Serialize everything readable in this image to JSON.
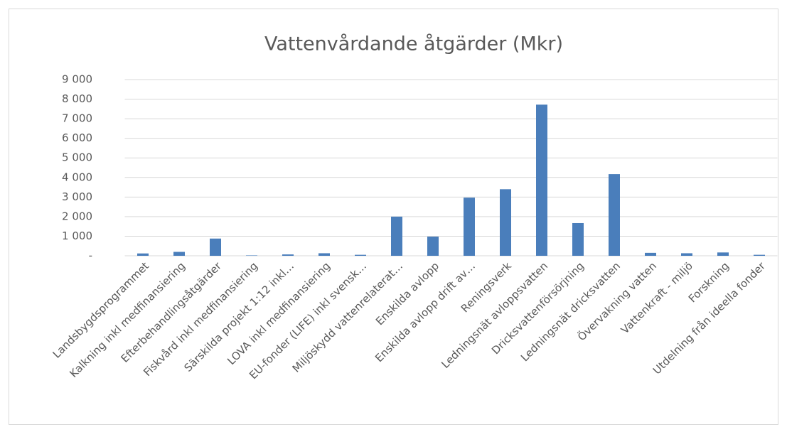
{
  "chart_data": {
    "type": "bar",
    "title": "Vattenvårdande åtgärder (Mkr)",
    "categories": [
      "Landsbygdsprogrammet",
      "Kalkning inkl medfinansiering",
      "Efterbehandlingsåtgärder",
      "Fiskvård inkl medfinansiering",
      "Särskilda projekt 1:12 inkl…",
      "LOVA inkl medfinansiering",
      "EU-fonder (LIFE) inkl svensk…",
      "Miljöskydd vattenrelaterat…",
      "Enskilda avlopp",
      "Enskilda avlopp drift av…",
      "Reningsverk",
      "Ledningsnät avloppsvatten",
      "Dricksvattenförsörjning",
      "Ledningsnät dricksvatten",
      "Övervakning vatten",
      "Vattenkraft - miljö",
      "Forskning",
      "Utdelning från ideella fonder"
    ],
    "values": [
      120,
      200,
      880,
      20,
      70,
      130,
      50,
      2000,
      980,
      2970,
      3400,
      7720,
      1670,
      4170,
      150,
      130,
      170,
      50
    ],
    "color": "#4a7ebb",
    "ylim": [
      0,
      9000
    ],
    "yticks": [
      {
        "value": 0,
        "label": "-"
      },
      {
        "value": 1000,
        "label": "1 000"
      },
      {
        "value": 2000,
        "label": "2 000"
      },
      {
        "value": 3000,
        "label": "3 000"
      },
      {
        "value": 4000,
        "label": "4 000"
      },
      {
        "value": 5000,
        "label": "5 000"
      },
      {
        "value": 6000,
        "label": "6 000"
      },
      {
        "value": 7000,
        "label": "7 000"
      },
      {
        "value": 8000,
        "label": "8 000"
      },
      {
        "value": 9000,
        "label": "9 000"
      }
    ],
    "grid": true
  }
}
